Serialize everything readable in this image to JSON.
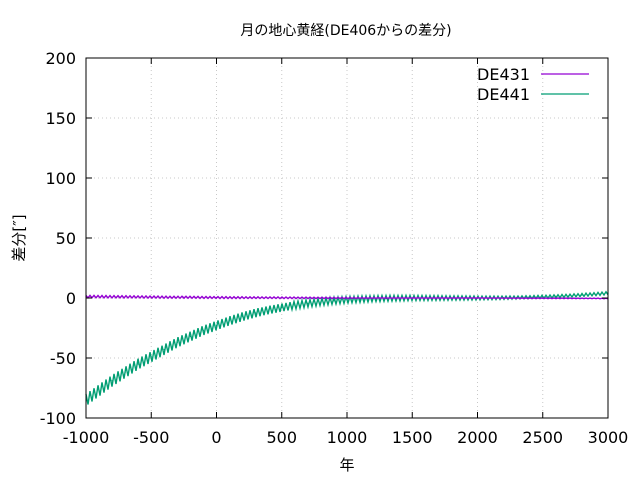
{
  "chart_data": {
    "type": "line",
    "title": "月の地心黄経(DE406からの差分)",
    "xlabel": "年",
    "ylabel": "差分[″]",
    "xlim": [
      -1000,
      3000
    ],
    "ylim": [
      -100,
      200
    ],
    "xticks": [
      "-1000",
      "-500",
      "0",
      "500",
      "1000",
      "1500",
      "2000",
      "2500",
      "3000"
    ],
    "yticks": [
      "-100",
      "-50",
      "0",
      "50",
      "100",
      "150",
      "200"
    ],
    "grid": true,
    "legend_position": "top-right",
    "series": [
      {
        "name": "DE431",
        "color": "#9400d3",
        "x": [
          -1000,
          -750,
          -500,
          -250,
          0,
          250,
          500,
          750,
          1000,
          1250,
          1500,
          1750,
          2000,
          2250,
          2500,
          2750,
          3000
        ],
        "y": [
          1.2,
          1.0,
          0.8,
          0.6,
          0.4,
          0.3,
          0.2,
          0.1,
          0.0,
          0.0,
          0.0,
          0.0,
          0.0,
          -0.1,
          -0.2,
          -0.3,
          -0.4
        ],
        "band": 1
      },
      {
        "name": "DE441",
        "color": "#009e73",
        "x": [
          -1000,
          -900,
          -800,
          -700,
          -600,
          -500,
          -400,
          -300,
          -200,
          -100,
          0,
          100,
          200,
          300,
          400,
          500,
          600,
          700,
          800,
          900,
          1000,
          1100,
          1200,
          1300,
          1400,
          1500,
          1600,
          1700,
          1800,
          1900,
          2000,
          2100,
          2200,
          2300,
          2400,
          2500,
          2600,
          2700,
          2800,
          2900,
          3000
        ],
        "y": [
          -85,
          -77,
          -69,
          -62,
          -55,
          -49,
          -43,
          -37,
          -32,
          -27,
          -23,
          -19,
          -15.5,
          -12.5,
          -10,
          -8,
          -6,
          -4.5,
          -3.3,
          -2.3,
          -1.5,
          -1,
          -0.6,
          -0.3,
          -0.1,
          0,
          0,
          0,
          0,
          0,
          0,
          0.1,
          0.2,
          0.4,
          0.7,
          1.0,
          1.4,
          1.9,
          2.5,
          3.2,
          4.0
        ],
        "band": 5
      }
    ]
  }
}
